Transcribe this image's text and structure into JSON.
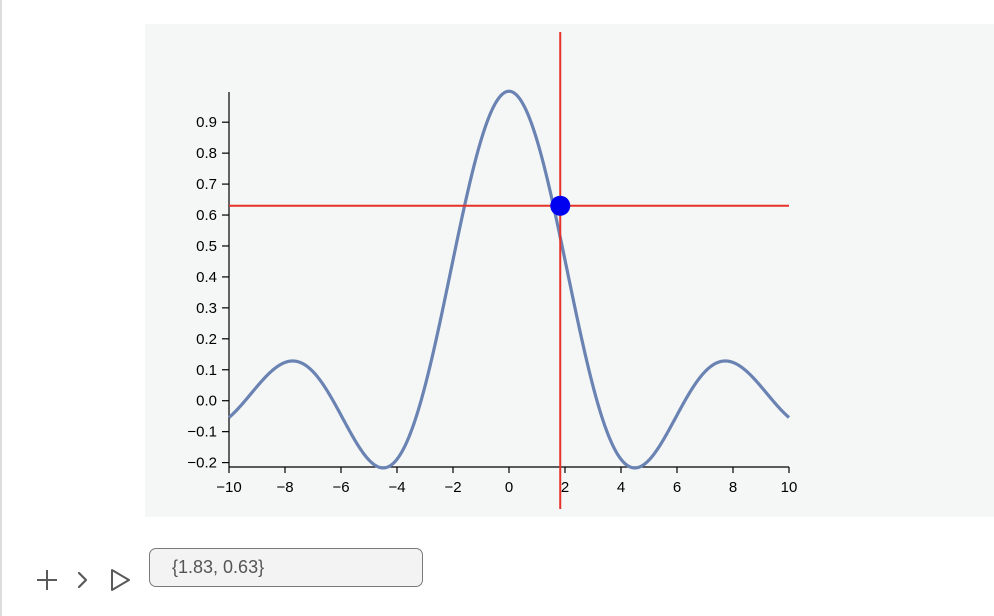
{
  "chart_data": {
    "type": "line",
    "function": "sin(x)/x",
    "xlim": [
      -10,
      10
    ],
    "ylim": [
      -0.22,
      0.99
    ],
    "x_ticks": [
      "−10",
      "−8",
      "−6",
      "−4",
      "−2",
      "0",
      "2",
      "4",
      "6",
      "8",
      "10"
    ],
    "y_ticks": [
      "−0.2",
      "−0.1",
      "0.0",
      "0.1",
      "0.2",
      "0.3",
      "0.4",
      "0.5",
      "0.6",
      "0.7",
      "0.8",
      "0.9"
    ],
    "series": [
      {
        "color": "#6a83b3"
      }
    ],
    "crosshair": {
      "x": 1.83,
      "y": 0.63,
      "line_color": "#e5332a",
      "point_color": "#0000f0"
    }
  },
  "output": {
    "value": "{1.83, 0.63}"
  },
  "controls": {
    "icons": [
      "plus-icon",
      "chevron-right-icon",
      "play-icon"
    ]
  }
}
